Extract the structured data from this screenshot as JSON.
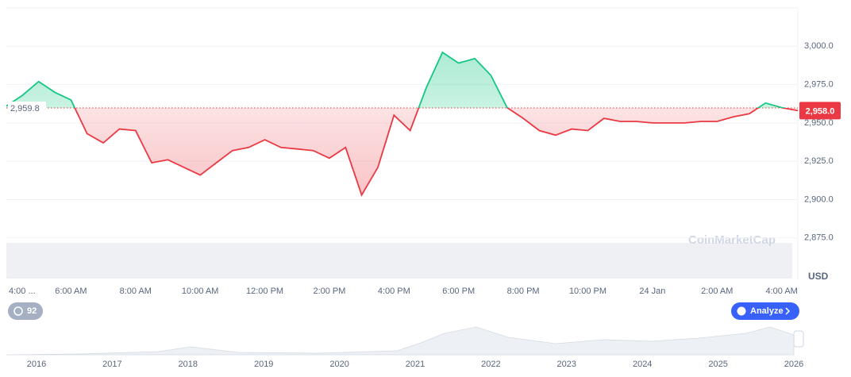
{
  "chart_data": {
    "type": "line",
    "x_ticks_note": null,
    "xticks": [
      {
        "value": 0,
        "label": "4:00 ..."
      },
      {
        "value": 4,
        "label": "6:00 AM"
      },
      {
        "value": 8,
        "label": "8:00 AM"
      },
      {
        "value": 12,
        "label": "10:00 AM"
      },
      {
        "value": 16,
        "label": "12:00 PM"
      },
      {
        "value": 20,
        "label": "2:00 PM"
      },
      {
        "value": 24,
        "label": "4:00 PM"
      },
      {
        "value": 28,
        "label": "6:00 PM"
      },
      {
        "value": 32,
        "label": "8:00 PM"
      },
      {
        "value": 36,
        "label": "10:00 PM"
      },
      {
        "value": 40,
        "label": "24 Jan"
      },
      {
        "value": 44,
        "label": "2:00 AM"
      },
      {
        "value": 48,
        "label": "4:00 AM"
      }
    ],
    "xlim": [
      0,
      49
    ],
    "ylim": [
      2849,
      3025
    ],
    "yticks": [
      {
        "value": 2875,
        "label": "2,875.0"
      },
      {
        "value": 2900,
        "label": "2,900.0"
      },
      {
        "value": 2925,
        "label": "2,925.0"
      },
      {
        "value": 2950,
        "label": "2,950.0"
      },
      {
        "value": 2975,
        "label": "2,975.0"
      },
      {
        "value": 3000,
        "label": "3,000.0"
      }
    ],
    "grid": true,
    "y_unit": "USD",
    "baseline": {
      "value": 2959.8,
      "label": "2,959.8"
    },
    "last_price": {
      "value": 2958.0,
      "label": "2,958.0"
    },
    "up_color": "#16c784",
    "down_color": "#ea3943",
    "values": [
      2961,
      2968,
      2977,
      2970,
      2965,
      2943,
      2937,
      2946,
      2945,
      2924,
      2926,
      2921,
      2916,
      2924,
      2932,
      2934,
      2939,
      2934,
      2933,
      2932,
      2927,
      2934,
      2903,
      2921,
      2955,
      2945,
      2973,
      2996,
      2989,
      2992,
      2981,
      2960,
      2953,
      2945,
      2942,
      2946,
      2945,
      2953,
      2951,
      2951,
      2950,
      2950,
      2950,
      2951,
      2951,
      2954,
      2956,
      2963,
      2960,
      2958
    ],
    "watermark": "CoinMarketCap",
    "history_badge": "92",
    "analyze_button": "Analyze",
    "navigator_years": [
      "2016",
      "2017",
      "2018",
      "2019",
      "2020",
      "2021",
      "2022",
      "2023",
      "2024",
      "2025",
      "2026"
    ]
  }
}
